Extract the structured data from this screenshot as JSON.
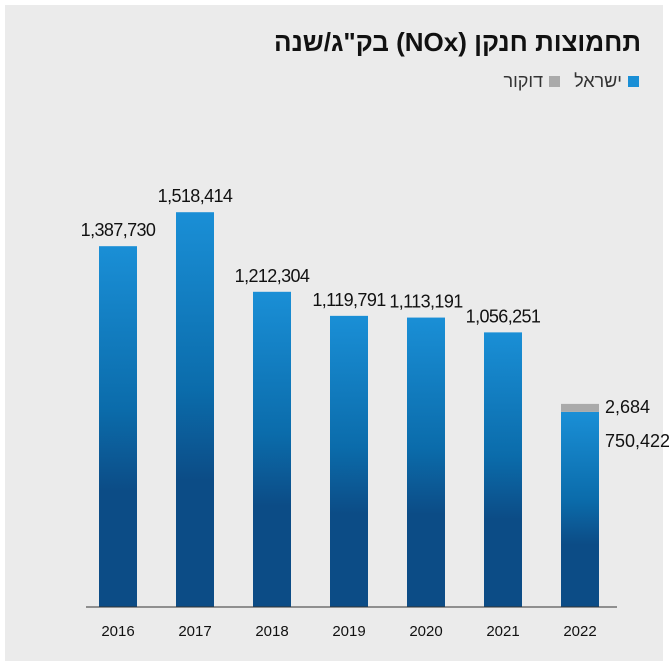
{
  "chart_data": {
    "type": "bar",
    "title": "תחמוצות חנקן (NOx) בק\"ג/שנה",
    "categories": [
      "2016",
      "2017",
      "2018",
      "2019",
      "2020",
      "2021",
      "2022"
    ],
    "series": [
      {
        "name": "ישראל",
        "color": "#1a8fd6",
        "values": [
          1387730,
          1518414,
          1212304,
          1119791,
          1113191,
          1056251,
          750422
        ],
        "labels": [
          "1,387,730",
          "1,518,414",
          "1,212,304",
          "1,119,791",
          "1,113,191",
          "1,056,251",
          "750,422"
        ]
      },
      {
        "name": "דוקור",
        "color": "#aaaaaa",
        "values": [
          0,
          0,
          0,
          0,
          0,
          0,
          2684
        ],
        "labels": [
          "",
          "",
          "",
          "",
          "",
          "",
          "2,684"
        ]
      }
    ],
    "stacked": true,
    "ylim": [
      0,
      1600000
    ],
    "grid": false,
    "legend_position": "top-right",
    "xlabel": "",
    "ylabel": ""
  }
}
